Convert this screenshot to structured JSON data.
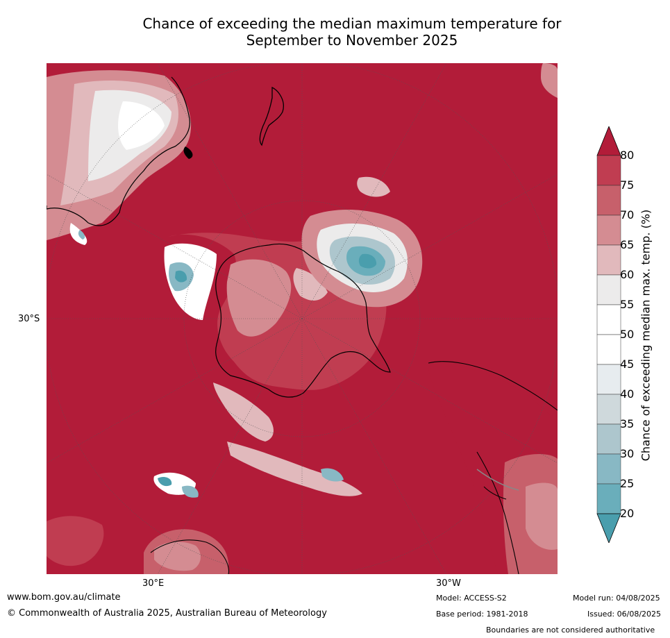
{
  "title": {
    "line1": "Chance of exceeding the median maximum temperature for",
    "line2": "September to November 2025"
  },
  "map": {
    "projection": "south polar stereographic",
    "background_category": "80",
    "lat_label": "30°S",
    "lon_labels": [
      "30°E",
      "30°W"
    ]
  },
  "colorbar": {
    "label": "Chance of exceeding median max. temp. (%)",
    "ticks": [
      "80",
      "75",
      "70",
      "65",
      "60",
      "55",
      "50",
      "45",
      "40",
      "35",
      "30",
      "25",
      "20"
    ],
    "extend": "both",
    "colors": [
      "#b21c39",
      "#c03d51",
      "#c7606b",
      "#d48c92",
      "#e1b9bc",
      "#ecebeb",
      "#ffffff",
      "#ffffff",
      "#e7ecef",
      "#cfd9dc",
      "#adc6cd",
      "#88b8c4",
      "#6aaebb",
      "#4a9ead"
    ]
  },
  "footer": {
    "website": "www.bom.gov.au/climate",
    "copyright": "© Commonwealth of Australia 2025, Australian Bureau of Meteorology",
    "model": "Model: ACCESS-S2",
    "base_period": "Base period: 1981-2018",
    "model_run": "Model run: 04/08/2025",
    "issued": "Issued: 06/08/2025",
    "disclaimer": "Boundaries are not considered authoritative"
  }
}
